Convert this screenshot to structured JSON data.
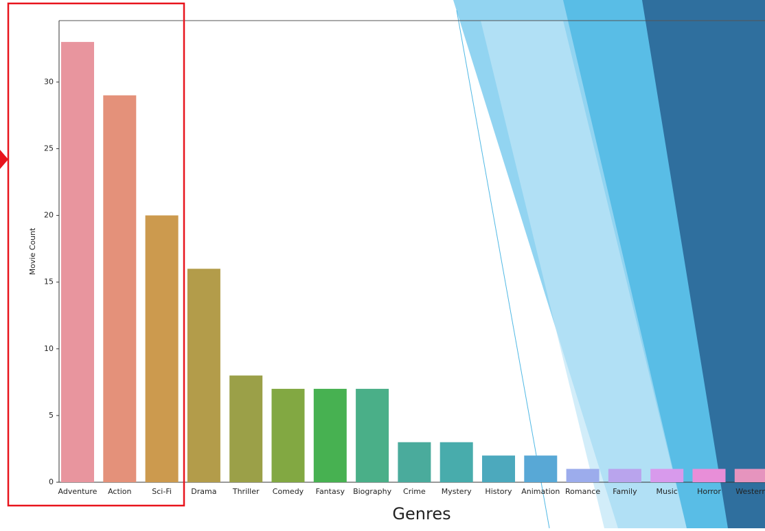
{
  "chart_data": {
    "type": "bar",
    "x_label": "Genres",
    "y_label": "Movie Count",
    "categories": [
      "Adventure",
      "Action",
      "Sci-Fi",
      "Drama",
      "Thriller",
      "Comedy",
      "Fantasy",
      "Biography",
      "Crime",
      "Mystery",
      "History",
      "Animation",
      "Romance",
      "Family",
      "Music",
      "Horror",
      "Western"
    ],
    "values": [
      33,
      29,
      20,
      16,
      8,
      7,
      7,
      7,
      3,
      3,
      2,
      2,
      1,
      1,
      1,
      1,
      1
    ],
    "colors": [
      "#e8959e",
      "#e4917a",
      "#cc9a4e",
      "#b39c4a",
      "#9ba048",
      "#82a842",
      "#47b151",
      "#4aaf88",
      "#4aab9c",
      "#48acac",
      "#4ca9bd",
      "#58a8d6",
      "#9cacec",
      "#b9a4ed",
      "#d89aec",
      "#e88ed8",
      "#e694be"
    ],
    "ylim": [
      0,
      34.6
    ],
    "yticks": [
      0,
      5,
      10,
      15,
      20,
      25,
      30
    ]
  }
}
